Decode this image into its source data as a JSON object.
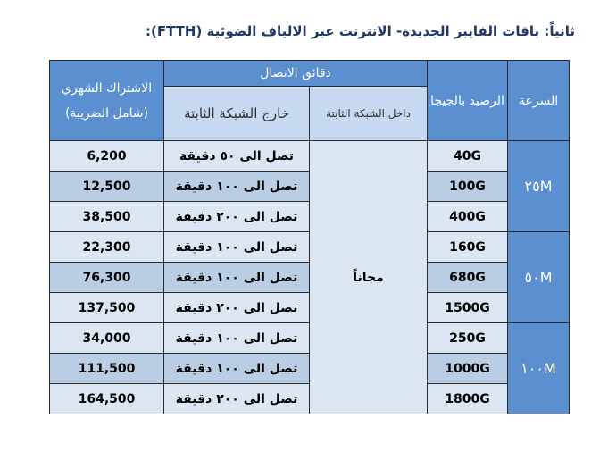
{
  "header": {
    "title": "ثانياً: باقات الفايبر الجديدة- الانترنت عبر الالياف الضوئية (FTTH):"
  },
  "table": {
    "headers": {
      "speed": "السرعة",
      "balance": "الرصيد بالجيجا",
      "minutes": "دقائق الاتصال",
      "inside": "داخل الشبكة الثابتة",
      "outside": "خارج الشبكة الثابتة",
      "price": "الاشتراك الشهري (شامل الضريبة)"
    },
    "speeds": [
      "٢٥M",
      "٥٠M",
      "١٠٠M"
    ],
    "free": "مجاناً",
    "rows": [
      [
        "40G",
        "تصل الى ٥٠ دقيقة",
        "6,200"
      ],
      [
        "100G",
        "تصل الى ١٠٠ دقيقة",
        "12,500"
      ],
      [
        "400G",
        "تصل الى ٢٠٠ دقيقة",
        "38,500"
      ],
      [
        "160G",
        "تصل الى ١٠٠ دقيقة",
        "22,300"
      ],
      [
        "680G",
        "تصل الى ١٠٠ دقيقة",
        "76,300"
      ],
      [
        "1500G",
        "تصل الى ٢٠٠ دقيقة",
        "137,500"
      ],
      [
        "250G",
        "تصل الى ١٠٠ دقيقة",
        "34,000"
      ],
      [
        "1000G",
        "تصل الى ١٠٠ دقيقة",
        "111,500"
      ],
      [
        "1800G",
        "تصل الى ٢٠٠ دقيقة",
        "164,500"
      ]
    ]
  }
}
